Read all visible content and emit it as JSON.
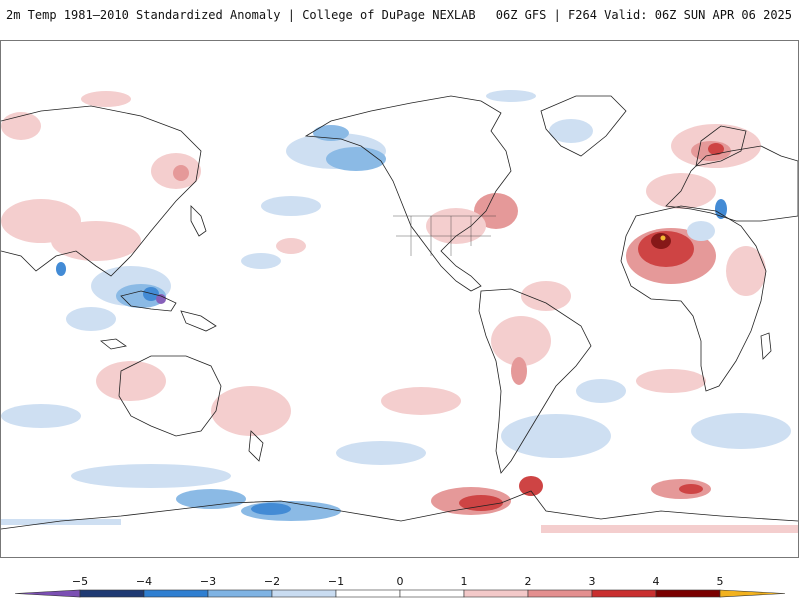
{
  "header": {
    "title": "2m Temp 1981–2010 Standardized Anomaly | College of DuPage NEXLAB",
    "valid": "06Z GFS | F264 Valid: 06Z SUN APR 06 2025"
  },
  "legend": {
    "ticks": [
      "−5",
      "−4",
      "−3",
      "−2",
      "−1",
      "0",
      "1",
      "2",
      "3",
      "4",
      "5"
    ],
    "colors": [
      "#7b4fb3",
      "#1f3a73",
      "#2f7fd1",
      "#7fb3e3",
      "#c9dcf1",
      "#ffffff",
      "#ffffff",
      "#f3c9c9",
      "#e38f8f",
      "#c93030",
      "#7a0000",
      "#f2b21f"
    ]
  }
}
